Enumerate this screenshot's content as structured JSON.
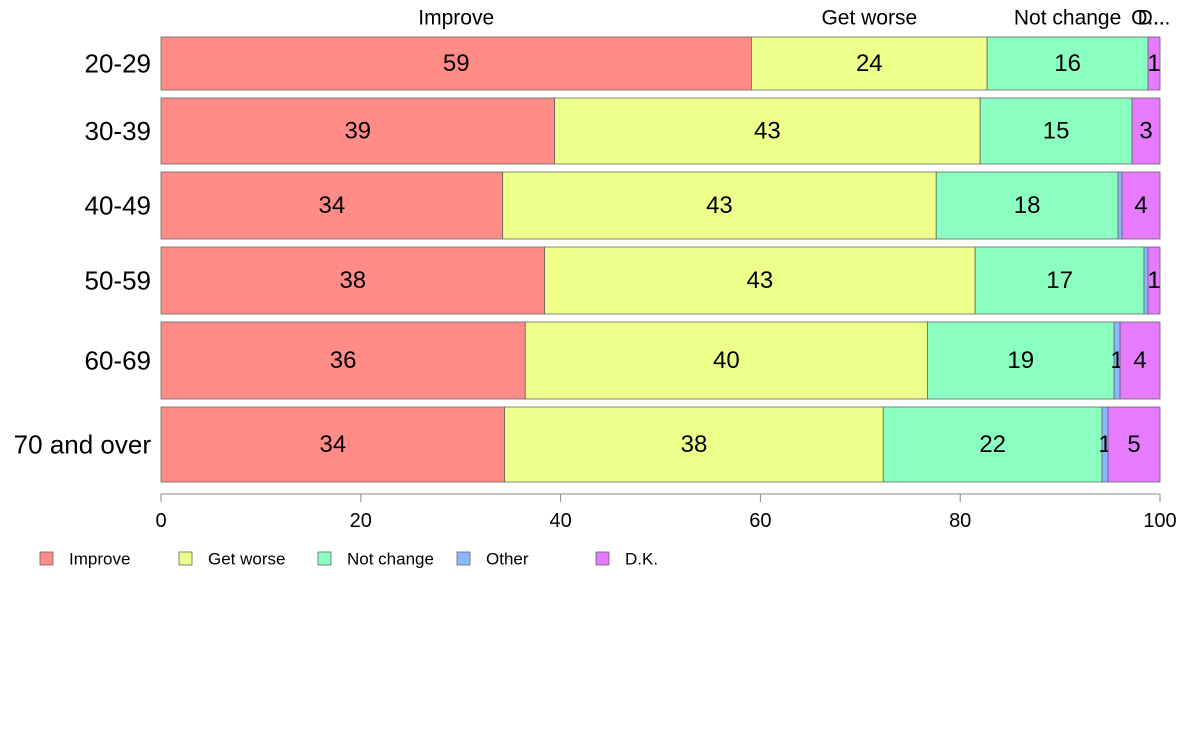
{
  "chart_data": {
    "type": "bar",
    "orientation": "horizontal",
    "stacked": true,
    "categories": [
      "20-29",
      "30-39",
      "40-49",
      "50-59",
      "60-69",
      "70 and over"
    ],
    "series": [
      {
        "name": "Improve",
        "color": "#FF8C87",
        "values": [
          59.1,
          39.4,
          34.2,
          38.4,
          36.5,
          34.4
        ],
        "labels": [
          "59",
          "39",
          "34",
          "38",
          "36",
          "34"
        ]
      },
      {
        "name": "Get worse",
        "color": "#EEFF8A",
        "values": [
          23.6,
          42.6,
          43.4,
          43.1,
          40.3,
          37.9
        ],
        "labels": [
          "24",
          "43",
          "43",
          "43",
          "40",
          "38"
        ]
      },
      {
        "name": "Not change",
        "color": "#8AFFC0",
        "values": [
          16.1,
          15.2,
          18.2,
          16.9,
          18.7,
          21.9
        ],
        "labels": [
          "16",
          "15",
          "18",
          "17",
          "19",
          "22"
        ]
      },
      {
        "name": "Other",
        "color": "#8AB8FF",
        "values": [
          0.0,
          0.0,
          0.4,
          0.4,
          0.6,
          0.6
        ],
        "labels": [
          "",
          "",
          "",
          "",
          "1",
          "1"
        ]
      },
      {
        "name": "D.K.",
        "color": "#E67BFF",
        "values": [
          1.2,
          2.8,
          3.8,
          1.2,
          4.0,
          5.2
        ],
        "labels": [
          "1",
          "3",
          "4",
          "1",
          "4",
          "5"
        ]
      }
    ],
    "top_labels": [
      "Improve",
      "Get worse",
      "Not change",
      "O...",
      "D..."
    ],
    "xlim": [
      0,
      100
    ],
    "xticks": [
      "0",
      "20",
      "40",
      "60",
      "80",
      "100"
    ],
    "grid": false,
    "legend": {
      "position": "bottom-left",
      "entries": [
        "Improve",
        "Get worse",
        "Not change",
        "Other",
        "D.K."
      ]
    }
  }
}
